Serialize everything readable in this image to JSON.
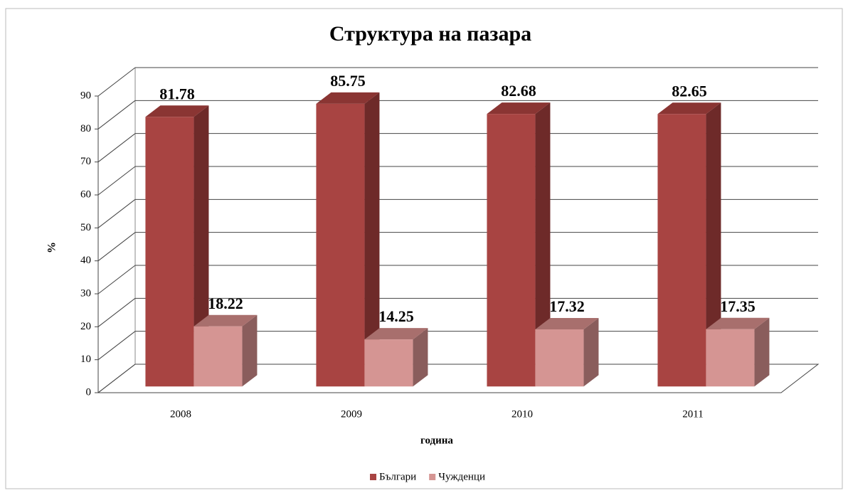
{
  "chart_data": {
    "type": "bar3d",
    "title": "Структура на пазара",
    "xlabel": "година",
    "ylabel": "%",
    "categories": [
      "2008",
      "2009",
      "2010",
      "2011"
    ],
    "series": [
      {
        "name": "Българи",
        "color": "#a84442",
        "values": [
          81.78,
          85.75,
          82.68,
          82.65
        ]
      },
      {
        "name": "Чужденци",
        "color": "#d59593",
        "values": [
          18.22,
          14.25,
          17.32,
          17.35
        ]
      }
    ],
    "ylim": [
      0,
      90
    ],
    "yticks": [
      0,
      10,
      20,
      30,
      40,
      50,
      60,
      70,
      80,
      90
    ],
    "grid": true,
    "legend": "bottom"
  }
}
